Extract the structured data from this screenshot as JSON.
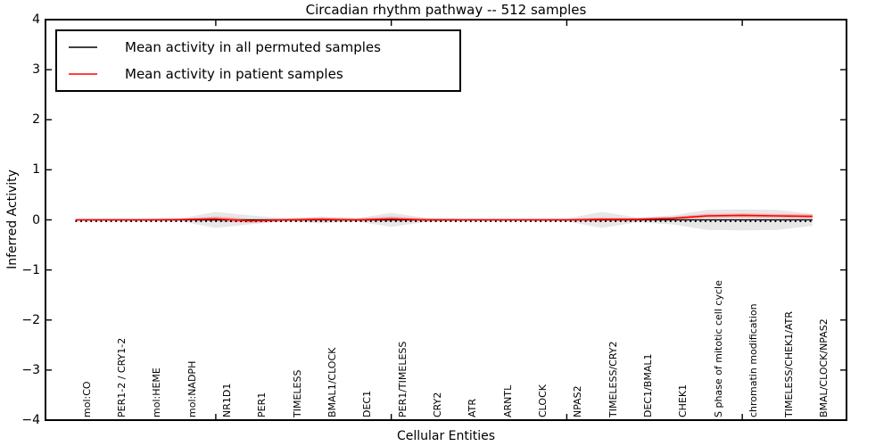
{
  "title": "Circadian rhythm pathway -- 512 samples",
  "axes": {
    "ylabel": "Inferred Activity",
    "xlabel": "Cellular Entities",
    "ytick_labels": [
      "4",
      "3",
      "2",
      "1",
      "0",
      "−1",
      "−2",
      "−3",
      "−4"
    ]
  },
  "legend": {
    "entries": [
      {
        "label": "Mean activity in all permuted samples",
        "color": "#000000"
      },
      {
        "label": "Mean activity in patient samples",
        "color": "#ff0000"
      }
    ]
  },
  "colors": {
    "permuted_line": "#000000",
    "permuted_band": "#c9c9c9",
    "patient_line": "#ff0000",
    "patient_band": "#ff0000",
    "frame": "#000000"
  },
  "chart_data": {
    "type": "line",
    "title": "Circadian rhythm pathway -- 512 samples",
    "xlabel": "Cellular Entities",
    "ylabel": "Inferred Activity",
    "ylim": [
      -4,
      4
    ],
    "ytick_step": 1,
    "grid": false,
    "legend_position": "upper left",
    "xtick_indices": [
      4,
      9,
      14,
      19
    ],
    "categories": [
      "mol:CO",
      "PER1-2 / CRY1-2",
      "mol:HEME",
      "mol:NADPH",
      "NR1D1",
      "PER1",
      "TIMELESS",
      "BMAL1/CLOCK",
      "DEC1",
      "PER1/TIMELESS",
      "CRY2",
      "ATR",
      "ARNTL",
      "CLOCK",
      "NPAS2",
      "TIMELESS/CRY2",
      "DEC1/BMAL1",
      "CHEK1",
      "S phase of mitotic cell cycle",
      "chromatin modification",
      "TIMELESS/CHEK1/ATR",
      "BMAL/CLOCK/NPAS2"
    ],
    "series": [
      {
        "name": "Mean activity in all permuted samples",
        "style": "dashed-black",
        "values": [
          0,
          0,
          0,
          0,
          0,
          0,
          0,
          0,
          0,
          0,
          0,
          0,
          0,
          0,
          0,
          0,
          0,
          0,
          0,
          0,
          0,
          0
        ],
        "band_halfwidth": [
          0.02,
          0.02,
          0.02,
          0.03,
          0.16,
          0.09,
          0.03,
          0.07,
          0.03,
          0.14,
          0.04,
          0.02,
          0.02,
          0.02,
          0.03,
          0.16,
          0.05,
          0.09,
          0.2,
          0.21,
          0.2,
          0.12
        ]
      },
      {
        "name": "Mean activity in patient samples",
        "style": "solid-red",
        "values": [
          0,
          0,
          0,
          0.005,
          0.02,
          -0.02,
          0,
          0.01,
          0,
          0.02,
          0,
          0,
          0,
          0,
          0,
          0.01,
          0.01,
          0.03,
          0.08,
          0.09,
          0.08,
          0.07
        ],
        "band_halfwidth": [
          0.02,
          0.02,
          0.02,
          0.02,
          0.05,
          0.04,
          0.03,
          0.04,
          0.03,
          0.05,
          0.03,
          0.02,
          0.02,
          0.02,
          0.02,
          0.04,
          0.03,
          0.03,
          0.04,
          0.04,
          0.04,
          0.04
        ]
      }
    ]
  }
}
